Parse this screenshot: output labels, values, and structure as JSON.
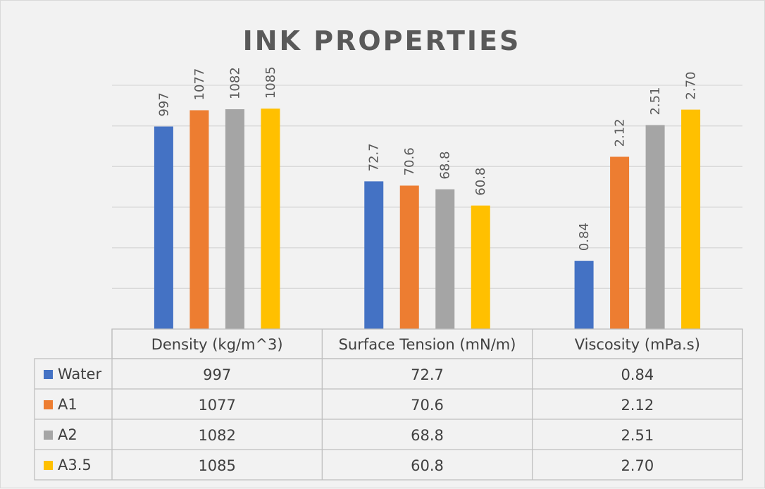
{
  "chart_data": {
    "type": "bar",
    "title": "INK PROPERTIES",
    "categories": [
      "Density (kg/m^3)",
      "Surface Tension (mN/m)",
      "Viscosity (mPa.s)"
    ],
    "series": [
      {
        "name": "Water",
        "color": "#4472c4",
        "values": [
          997,
          72.7,
          0.84
        ],
        "labels": [
          "997",
          "72.7",
          "0.84"
        ]
      },
      {
        "name": "A1",
        "color": "#ed7d31",
        "values": [
          1077,
          70.6,
          2.12
        ],
        "labels": [
          "1077",
          "70.6",
          "2.12"
        ]
      },
      {
        "name": "A2",
        "color": "#a5a5a5",
        "values": [
          1082,
          68.8,
          2.51
        ],
        "labels": [
          "1082",
          "68.8",
          "2.51"
        ]
      },
      {
        "name": "A3.5",
        "color": "#ffc000",
        "values": [
          1085,
          60.8,
          2.7
        ],
        "labels": [
          "1085",
          "60.8",
          "2.70"
        ]
      }
    ],
    "category_axis_max": [
      1200,
      120,
      3.0
    ],
    "gridlines": true,
    "data_table": true,
    "legend_keys_in_table": true
  }
}
